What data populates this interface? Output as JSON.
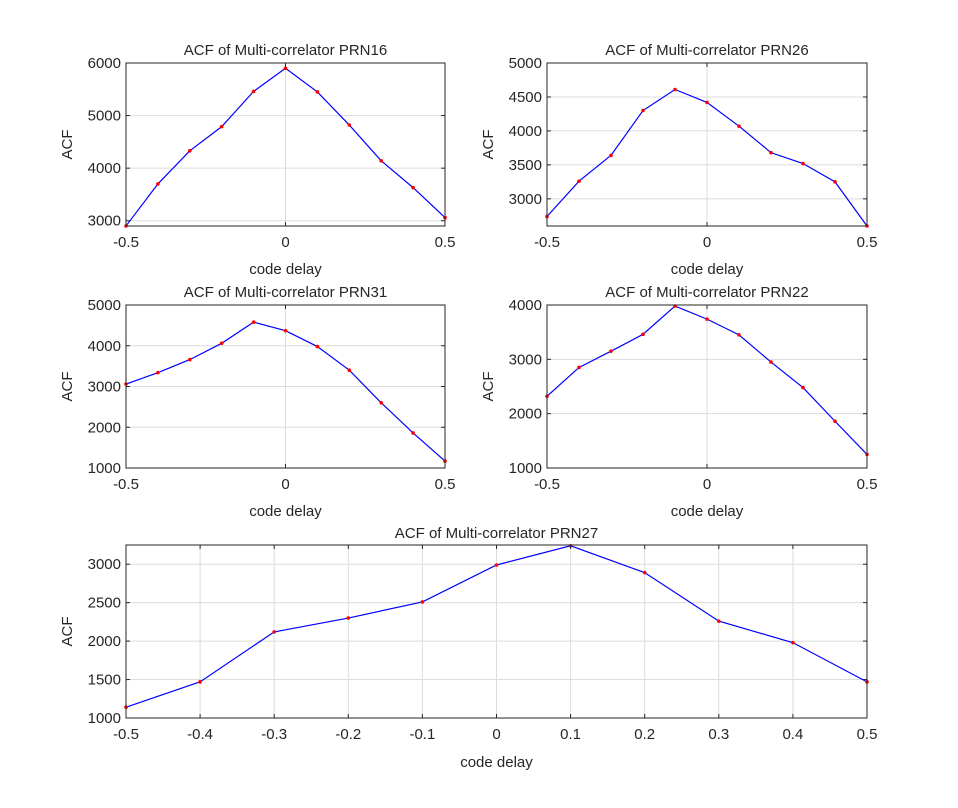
{
  "figure": {
    "background": "#ffffff"
  },
  "style": {
    "line_color": "#0000ff",
    "marker_color": "#ff0000",
    "grid_color": "#dcdcdc",
    "axis_color": "#262626"
  },
  "chart_data": [
    {
      "type": "line",
      "title": "ACF of Multi-correlator PRN16",
      "xlabel": "code delay",
      "ylabel": "ACF",
      "xlim": [
        -0.5,
        0.5
      ],
      "ylim": [
        2900,
        6000
      ],
      "xticks": [
        -0.5,
        0,
        0.5
      ],
      "xtick_labels": [
        "-0.5",
        "0",
        "0.5"
      ],
      "yticks": [
        3000,
        4000,
        5000,
        6000
      ],
      "ytick_labels": [
        "3000",
        "4000",
        "5000",
        "6000"
      ],
      "grid": true,
      "x": [
        -0.5,
        -0.4,
        -0.3,
        -0.2,
        -0.1,
        0,
        0.1,
        0.2,
        0.3,
        0.4,
        0.5
      ],
      "y": [
        2900,
        3700,
        4330,
        4790,
        5460,
        5900,
        5450,
        4820,
        4140,
        3630,
        3060
      ]
    },
    {
      "type": "line",
      "title": "ACF of Multi-correlator PRN26",
      "xlabel": "code delay",
      "ylabel": "ACF",
      "xlim": [
        -0.5,
        0.5
      ],
      "ylim": [
        2600,
        5000
      ],
      "xticks": [
        -0.5,
        0,
        0.5
      ],
      "xtick_labels": [
        "-0.5",
        "0",
        "0.5"
      ],
      "yticks": [
        3000,
        3500,
        4000,
        4500,
        5000
      ],
      "ytick_labels": [
        "3000",
        "3500",
        "4000",
        "4500",
        "5000"
      ],
      "grid": true,
      "x": [
        -0.5,
        -0.4,
        -0.3,
        -0.2,
        -0.1,
        0,
        0.1,
        0.2,
        0.3,
        0.4,
        0.5
      ],
      "y": [
        2740,
        3260,
        3640,
        4300,
        4610,
        4420,
        4070,
        3680,
        3520,
        3250,
        2600
      ]
    },
    {
      "type": "line",
      "title": "ACF of Multi-correlator PRN31",
      "xlabel": "code delay",
      "ylabel": "ACF",
      "xlim": [
        -0.5,
        0.5
      ],
      "ylim": [
        1000,
        5000
      ],
      "xticks": [
        -0.5,
        0,
        0.5
      ],
      "xtick_labels": [
        "-0.5",
        "0",
        "0.5"
      ],
      "yticks": [
        1000,
        2000,
        3000,
        4000,
        5000
      ],
      "ytick_labels": [
        "1000",
        "2000",
        "3000",
        "4000",
        "5000"
      ],
      "grid": true,
      "x": [
        -0.5,
        -0.4,
        -0.3,
        -0.2,
        -0.1,
        0,
        0.1,
        0.2,
        0.3,
        0.4,
        0.5
      ],
      "y": [
        3060,
        3340,
        3660,
        4060,
        4580,
        4370,
        3980,
        3400,
        2600,
        1860,
        1170
      ]
    },
    {
      "type": "line",
      "title": "ACF of Multi-correlator PRN22",
      "xlabel": "code delay",
      "ylabel": "ACF",
      "xlim": [
        -0.5,
        0.5
      ],
      "ylim": [
        1000,
        4000
      ],
      "xticks": [
        -0.5,
        0,
        0.5
      ],
      "xtick_labels": [
        "-0.5",
        "0",
        "0.5"
      ],
      "yticks": [
        1000,
        2000,
        3000,
        4000
      ],
      "ytick_labels": [
        "1000",
        "2000",
        "3000",
        "4000"
      ],
      "grid": true,
      "x": [
        -0.5,
        -0.4,
        -0.3,
        -0.2,
        -0.1,
        0,
        0.1,
        0.2,
        0.3,
        0.4,
        0.5
      ],
      "y": [
        2320,
        2850,
        3150,
        3460,
        3980,
        3740,
        3450,
        2950,
        2480,
        1860,
        1250
      ]
    },
    {
      "type": "line",
      "title": "ACF of Multi-correlator PRN27",
      "xlabel": "code delay",
      "ylabel": "ACF",
      "xlim": [
        -0.5,
        0.5
      ],
      "ylim": [
        1000,
        3250
      ],
      "xticks": [
        -0.5,
        -0.4,
        -0.3,
        -0.2,
        -0.1,
        0,
        0.1,
        0.2,
        0.3,
        0.4,
        0.5
      ],
      "xtick_labels": [
        "-0.5",
        "-0.4",
        "-0.3",
        "-0.2",
        "-0.1",
        "0",
        "0.1",
        "0.2",
        "0.3",
        "0.4",
        "0.5"
      ],
      "yticks": [
        1000,
        1500,
        2000,
        2500,
        3000
      ],
      "ytick_labels": [
        "1000",
        "1500",
        "2000",
        "2500",
        "3000"
      ],
      "grid": true,
      "x": [
        -0.5,
        -0.4,
        -0.3,
        -0.2,
        -0.1,
        0,
        0.1,
        0.2,
        0.3,
        0.4,
        0.5
      ],
      "y": [
        1140,
        1470,
        2120,
        2300,
        2510,
        2990,
        3240,
        2890,
        2260,
        1980,
        1470
      ]
    }
  ]
}
